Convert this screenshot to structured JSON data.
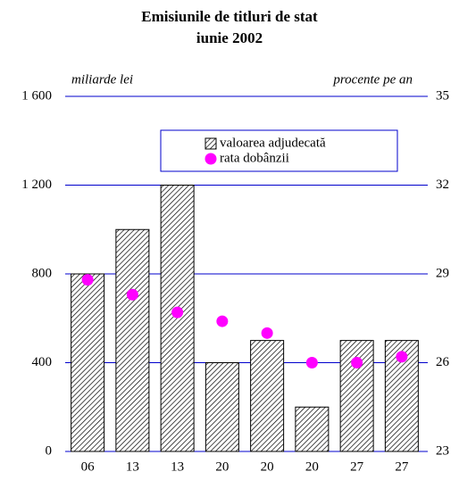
{
  "chart_data": {
    "type": "bar",
    "title": [
      "Emisiunile de titluri de stat",
      "iunie 2002"
    ],
    "y_label": "miliarde lei",
    "y2_label": "procente pe an",
    "categories": [
      "06",
      "13",
      "13",
      "20",
      "20",
      "20",
      "27",
      "27"
    ],
    "series": [
      {
        "name": "valoarea adjudecată",
        "type": "bar",
        "color": "#000000",
        "values": [
          800,
          1000,
          1200,
          400,
          500,
          200,
          500,
          500
        ]
      },
      {
        "name": "rata dobânzii",
        "type": "scatter",
        "axis": "y2",
        "color": "#ff00ff",
        "values": [
          28.8,
          28.3,
          27.7,
          27.4,
          27.0,
          26.0,
          26.0,
          26.2
        ]
      }
    ],
    "ylim": [
      0,
      1600
    ],
    "yticks": [
      0,
      400,
      800,
      {
        "value": 1200,
        "label": "1 200"
      },
      {
        "value": 1600,
        "label": "1 600"
      }
    ],
    "y2lim": [
      23,
      35
    ],
    "y2ticks": [
      23,
      26,
      29,
      32,
      35
    ],
    "grid": true,
    "grid_color": "#0000cc"
  }
}
